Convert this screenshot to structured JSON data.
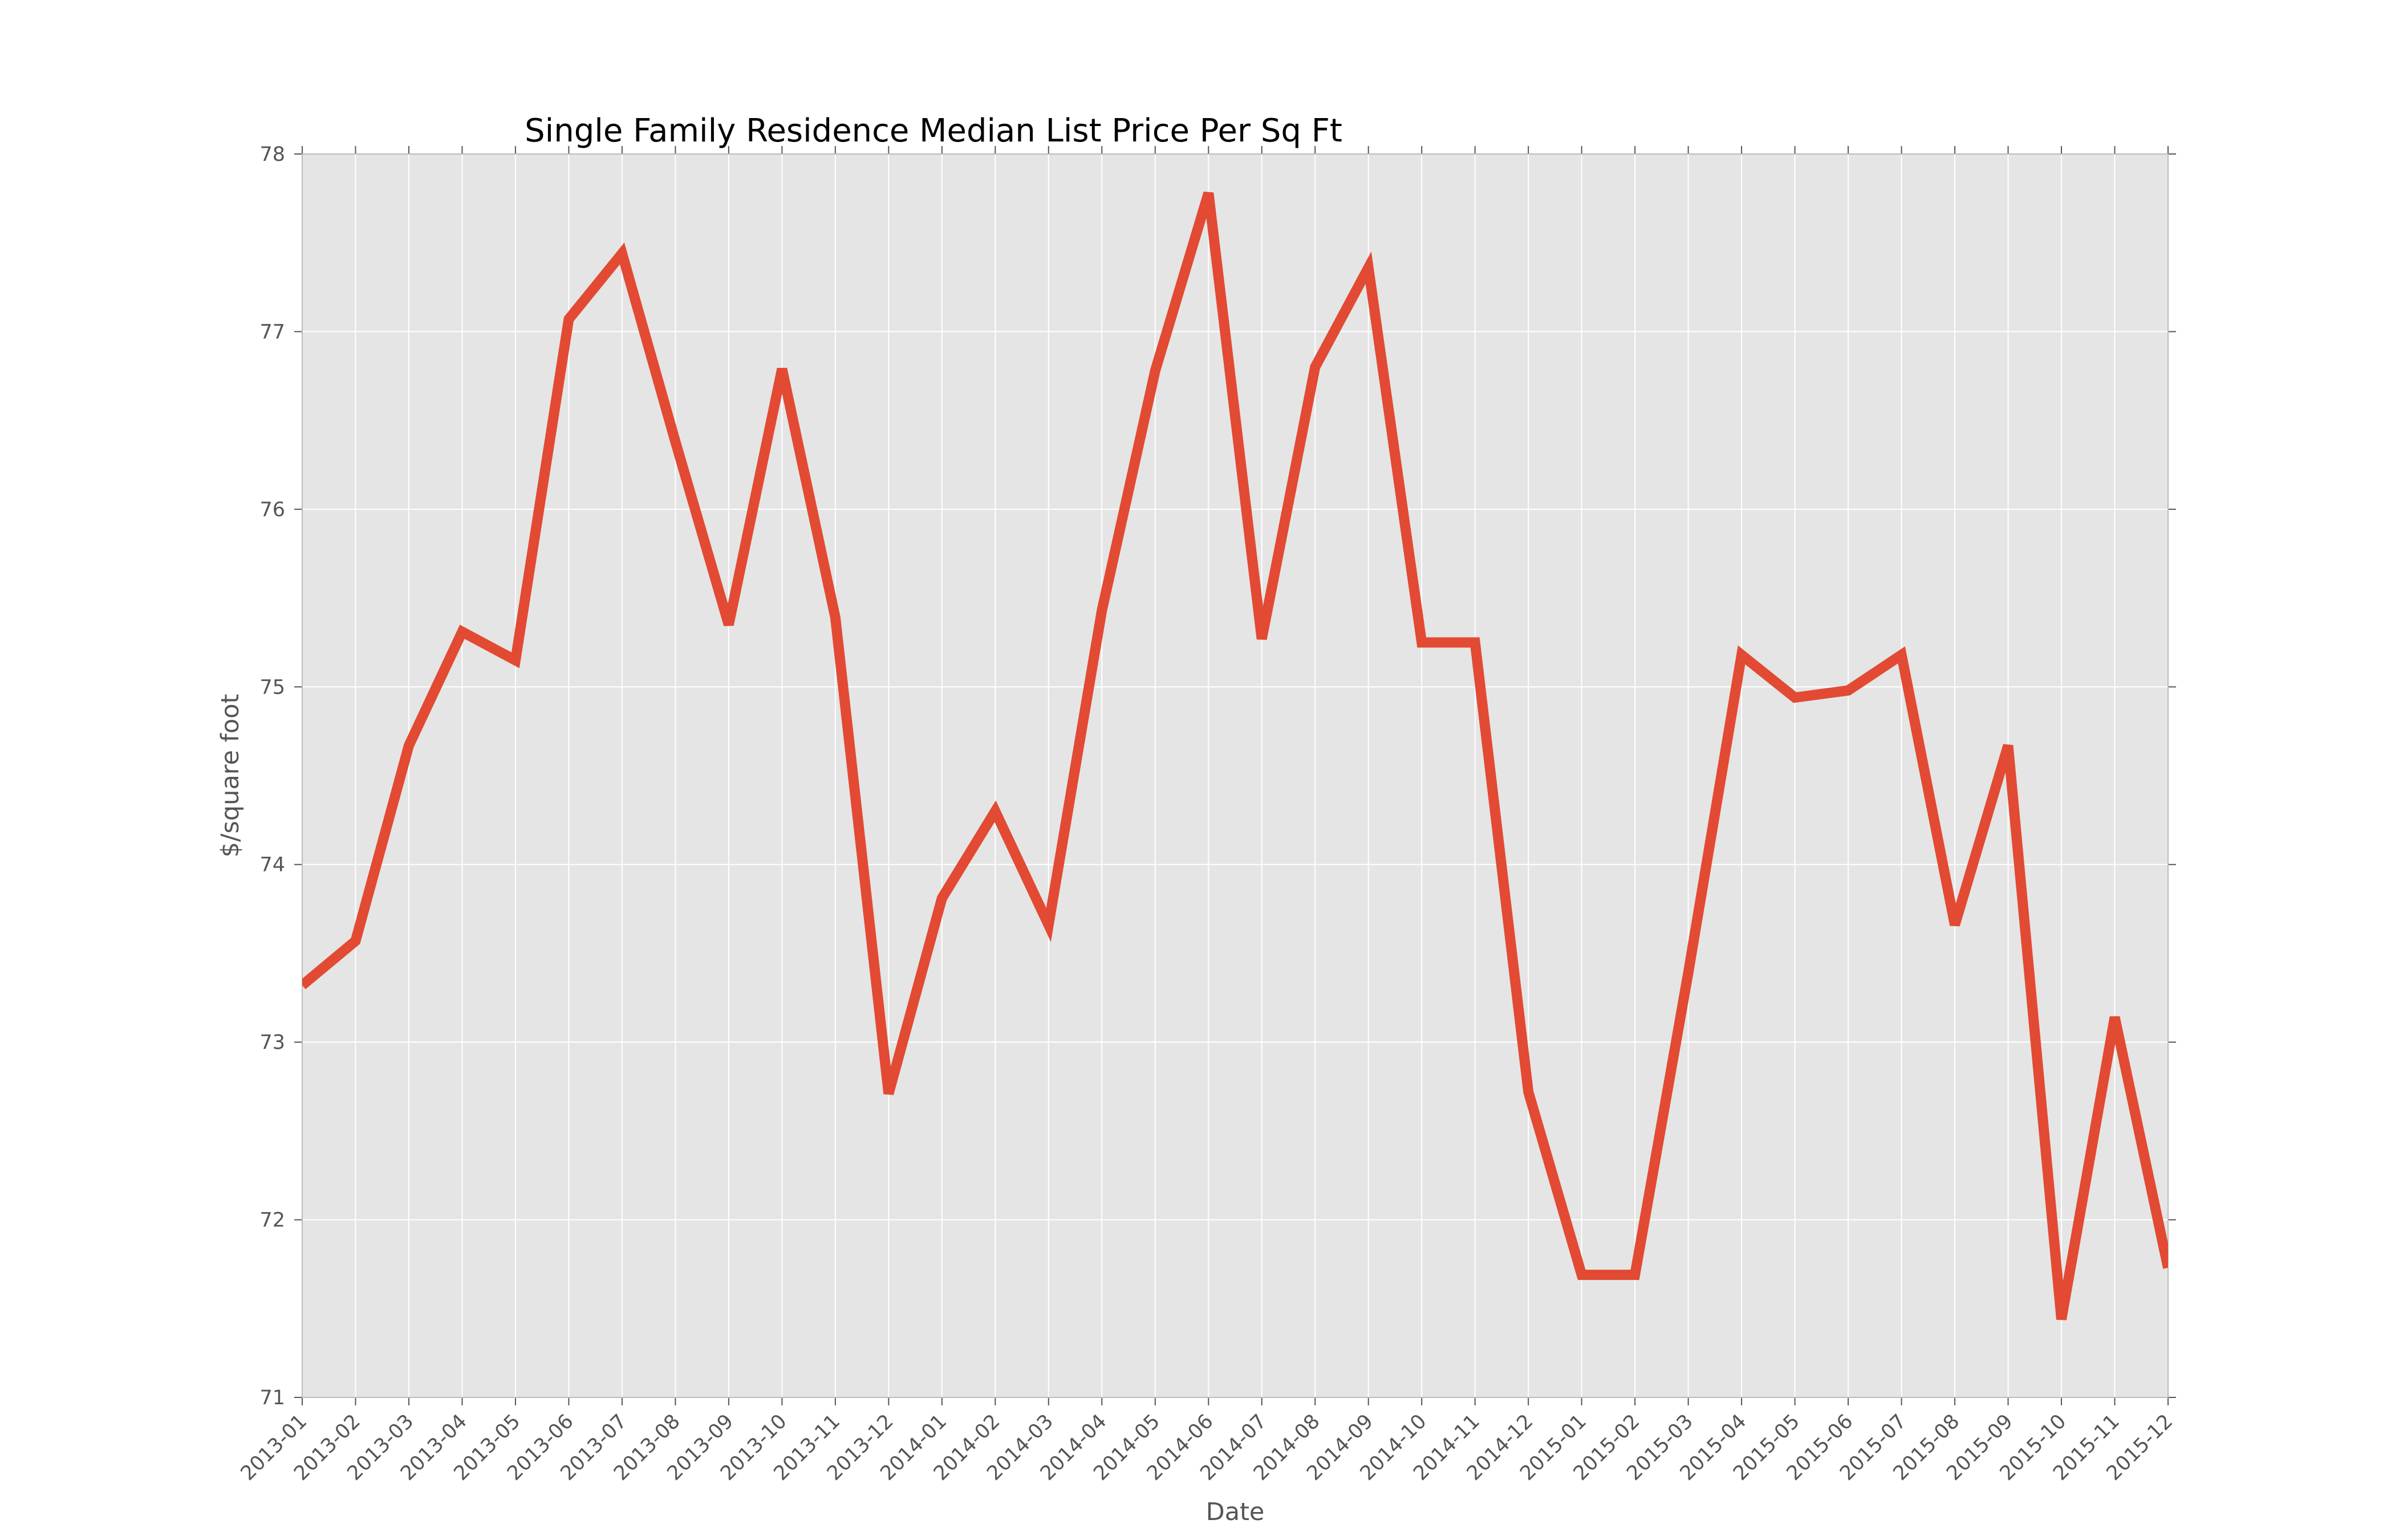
{
  "chart_data": {
    "type": "line",
    "title": "Single Family Residence Median List Price Per Sq Ft",
    "xlabel": "Date",
    "ylabel": "$/square foot",
    "ylim": [
      71,
      78
    ],
    "yticks": [
      "71",
      "72",
      "73",
      "74",
      "75",
      "76",
      "77",
      "78"
    ],
    "grid": true,
    "legend": "none",
    "colors": {
      "line": "#e24a33",
      "plot_background": "#e5e5e5",
      "grid": "#ffffff",
      "text": "#555555"
    },
    "categories": [
      "2013-01",
      "2013-02",
      "2013-03",
      "2013-04",
      "2013-05",
      "2013-06",
      "2013-07",
      "2013-08",
      "2013-09",
      "2013-10",
      "2013-11",
      "2013-12",
      "2014-01",
      "2014-02",
      "2014-03",
      "2014-04",
      "2014-05",
      "2014-06",
      "2014-07",
      "2014-08",
      "2014-09",
      "2014-10",
      "2014-11",
      "2014-12",
      "2015-01",
      "2015-02",
      "2015-03",
      "2015-04",
      "2015-05",
      "2015-06",
      "2015-07",
      "2015-08",
      "2015-09",
      "2015-10",
      "2015-11",
      "2015-12"
    ],
    "series": [
      {
        "values": [
          73.32,
          73.57,
          74.67,
          75.31,
          75.15,
          77.07,
          77.44,
          76.38,
          75.35,
          76.79,
          75.39,
          72.71,
          73.81,
          74.3,
          73.66,
          75.43,
          76.78,
          77.78,
          75.27,
          76.8,
          77.36,
          75.25,
          75.25,
          72.72,
          71.69,
          71.69,
          73.39,
          75.18,
          74.94,
          74.98,
          75.18,
          73.66,
          74.67,
          71.44,
          73.14,
          71.73
        ]
      }
    ]
  }
}
